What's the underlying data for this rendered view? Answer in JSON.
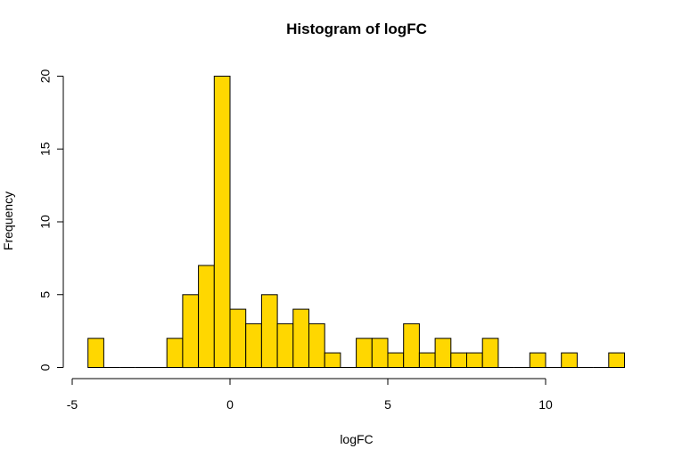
{
  "chart_data": {
    "type": "bar",
    "title": "Histogram of logFC",
    "xlabel": "logFC",
    "ylabel": "Frequency",
    "bar_color": "#FFD700",
    "xlim": [
      -5,
      12.5
    ],
    "ylim": [
      0,
      20
    ],
    "xticks": [
      -5,
      0,
      5,
      10
    ],
    "yticks": [
      0,
      5,
      10,
      15,
      20
    ],
    "bin_width": 0.5,
    "bin_edges_start": -4.5,
    "counts": [
      2,
      0,
      0,
      0,
      0,
      2,
      5,
      7,
      20,
      4,
      3,
      5,
      3,
      4,
      3,
      1,
      0,
      2,
      2,
      1,
      3,
      1,
      2,
      1,
      1,
      2,
      0,
      0,
      1,
      0,
      1,
      0,
      0,
      1
    ],
    "grid": false
  }
}
